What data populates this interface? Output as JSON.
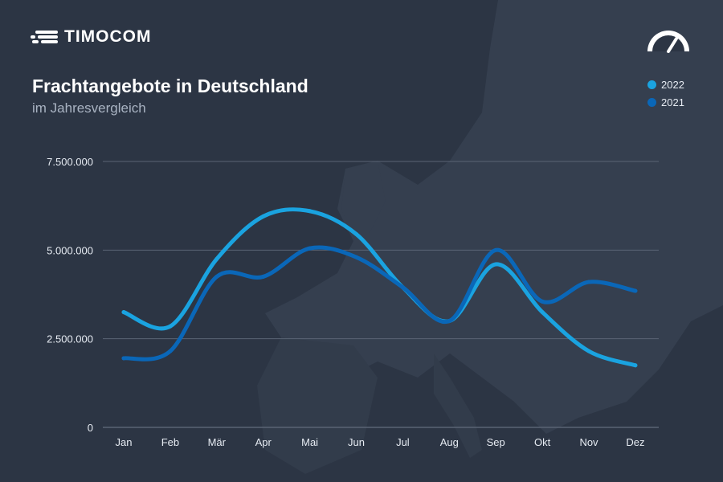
{
  "brand": {
    "name": "TIMOCOM",
    "logo_icon": "speed-lines-icon",
    "corner_icon": "gauge-icon"
  },
  "colors": {
    "background": "#2c3544",
    "series_2022": "#1aa3e0",
    "series_2021": "#0a67b8",
    "grid": "#5a6474"
  },
  "chart_data": {
    "type": "line",
    "title": "Frachtangebote in Deutschland",
    "subtitle": "im Jahresvergleich",
    "xlabel": "",
    "ylabel": "",
    "categories": [
      "Jan",
      "Feb",
      "Mär",
      "Apr",
      "Mai",
      "Jun",
      "Jul",
      "Aug",
      "Sep",
      "Okt",
      "Nov",
      "Dez"
    ],
    "ylim": [
      0,
      7500000
    ],
    "yticks": [
      0,
      2500000,
      5000000,
      7500000
    ],
    "ytick_labels": [
      "0",
      "2.500.000",
      "5.000.000",
      "7.500.000"
    ],
    "grid": true,
    "legend_position": "top-right",
    "smooth": true,
    "series": [
      {
        "name": "2022",
        "color": "#1aa3e0",
        "values": [
          3250000,
          2850000,
          4750000,
          5950000,
          6100000,
          5450000,
          3950000,
          3000000,
          4600000,
          3250000,
          2150000,
          1750000
        ]
      },
      {
        "name": "2021",
        "color": "#0a67b8",
        "values": [
          1950000,
          2150000,
          4250000,
          4250000,
          5050000,
          4800000,
          3950000,
          3000000,
          5000000,
          3550000,
          4100000,
          3850000
        ]
      }
    ]
  }
}
